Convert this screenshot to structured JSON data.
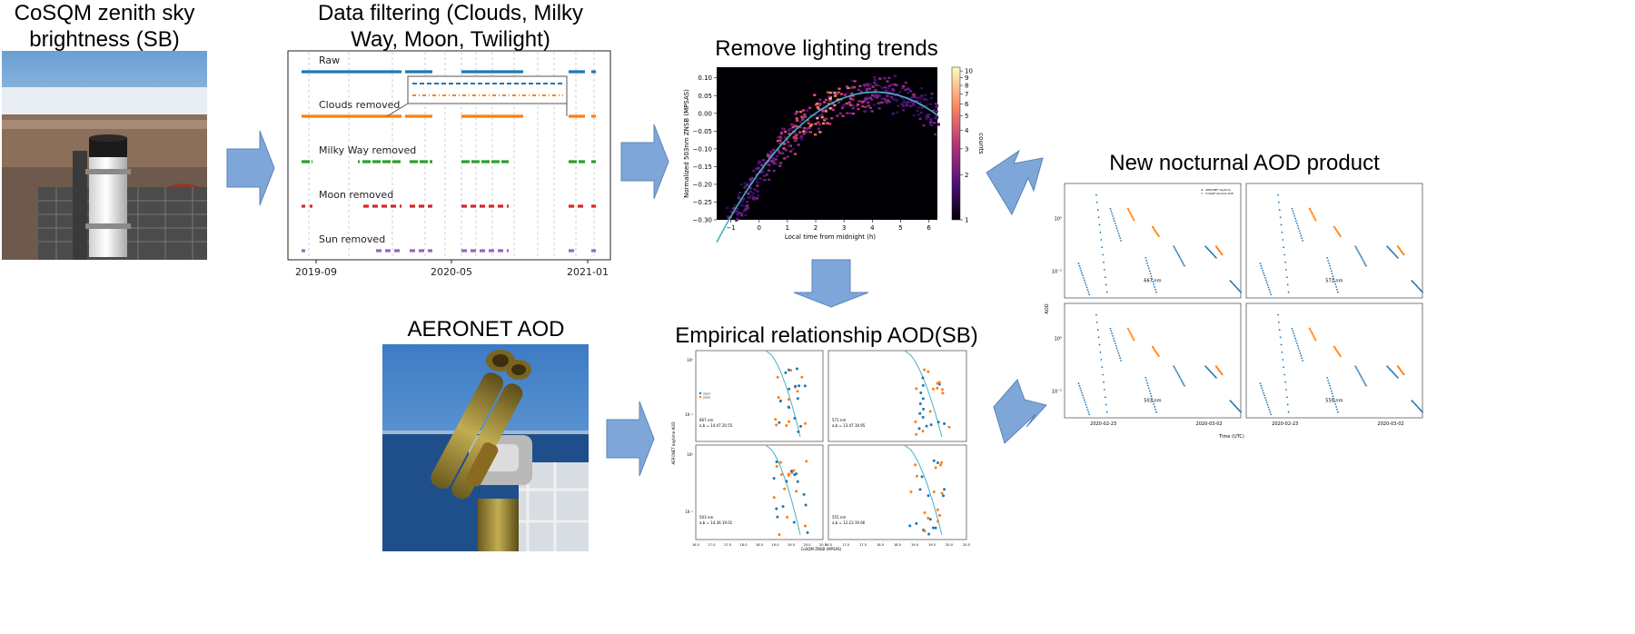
{
  "titles": {
    "cosqm": "CoSQM zenith sky brightness (SB)",
    "filtering": "Data filtering (Clouds, Milky Way, Moon, Twilight)",
    "trends": "Remove lighting trends",
    "product": "New nocturnal AOD product",
    "aeronet": "AERONET AOD",
    "empirical": "Empirical relationship AOD(SB)"
  },
  "colors": {
    "arrow_fill": "#7ea6d8",
    "arrow_stroke": "#5a85b8",
    "blue": "#1f77b4",
    "orange": "#ff7f0e",
    "green": "#2ca02c",
    "red": "#d62728",
    "purple": "#9467bd",
    "fit": "#43b1c8"
  },
  "filtering": {
    "rows": [
      {
        "label": "Raw",
        "color": "#1f77b4"
      },
      {
        "label": "Clouds removed",
        "color": "#ff7f0e"
      },
      {
        "label": "Milky Way removed",
        "color": "#2ca02c"
      },
      {
        "label": "Moon removed",
        "color": "#d62728"
      },
      {
        "label": "Sun removed",
        "color": "#9467bd"
      }
    ],
    "x_ticks": [
      "2019-09",
      "2020-05",
      "2021-01"
    ]
  },
  "trends": {
    "xlabel": "Local time from midnight (h)",
    "ylabel": "Normalized 503nm ZNSB (MPSAS)",
    "x_ticks": [
      "−1",
      "0",
      "1",
      "2",
      "3",
      "4",
      "5",
      "6"
    ],
    "y_ticks": [
      "0.10",
      "0.05",
      "0.00",
      "−0.05",
      "−0.10",
      "−0.15",
      "−0.20",
      "−0.25",
      "−0.30"
    ],
    "colorbar_label": "counts",
    "colorbar_ticks": [
      "10",
      "9",
      "8",
      "7",
      "6",
      "5",
      "4",
      "3",
      "2",
      "1"
    ]
  },
  "empirical": {
    "ylabel": "AERONET daytime AOD",
    "xlabel": "CoSQM ZNSB (MPSAS)",
    "x_ticks": [
      "16.5",
      "17.0",
      "17.5",
      "18.0",
      "18.5",
      "19.0",
      "19.5",
      "20.0",
      "20.5"
    ],
    "y_tick_top": "10⁰",
    "y_tick_bottom": "10⁻¹",
    "panels": [
      {
        "wl": "667 nm",
        "fit": "a,b = 14.47 20.55"
      },
      {
        "wl": "571 nm",
        "fit": "a,b = 13.47 19.95"
      },
      {
        "wl": "503 nm",
        "fit": "a,b = 14.36 19.01"
      },
      {
        "wl": "555 nm",
        "fit": "a,b = 12.23 19.66"
      }
    ],
    "legend": [
      "2019",
      "2020"
    ]
  },
  "product": {
    "panels": [
      {
        "wl": "667 nm"
      },
      {
        "wl": "571 nm"
      },
      {
        "wl": "503 nm"
      },
      {
        "wl": "555 nm"
      }
    ],
    "ylabel": "AOD",
    "xlabel": "Time (UTC)",
    "x_ticks": [
      "2020-02-23",
      "2020-03-02"
    ],
    "y_tick_top": "10⁰",
    "y_tick_bottom": "10⁻¹",
    "legend": [
      "AERONET daytime",
      "CoSQM derived AOD"
    ]
  }
}
